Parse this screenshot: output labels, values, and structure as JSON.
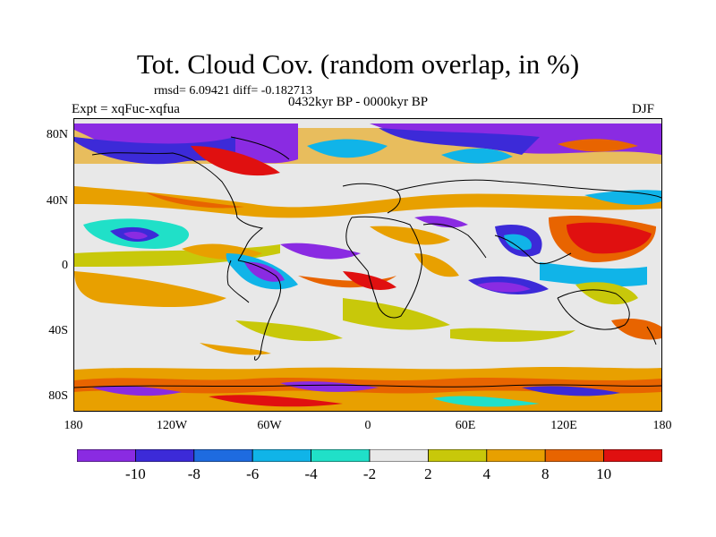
{
  "title": "Tot. Cloud Cov. (random overlap, in %)",
  "stats": "rmsd= 6.09421 diff= -0.182713",
  "period": "0432kyr BP - 0000kyr BP",
  "experiment": "Expt = xqFuc-xqfua",
  "season": "DJF",
  "map": {
    "lat_ticks": [
      "80N",
      "40N",
      "0",
      "40S",
      "80S"
    ],
    "lon_ticks": [
      "180",
      "120W",
      "60W",
      "0",
      "60E",
      "120E",
      "180"
    ]
  },
  "colorbar": {
    "labels": [
      "-10",
      "-8",
      "-6",
      "-4",
      "-2",
      "2",
      "4",
      "8",
      "10"
    ],
    "colors": [
      "#8a2be2",
      "#3c2ad8",
      "#1e6be0",
      "#10b4e8",
      "#20e0c8",
      "#e8e8e8",
      "#c8c80a",
      "#e8a000",
      "#e86400",
      "#e01010"
    ]
  },
  "colors": {
    "neutral": "#e8e8e8",
    "coastline": "#000000"
  }
}
